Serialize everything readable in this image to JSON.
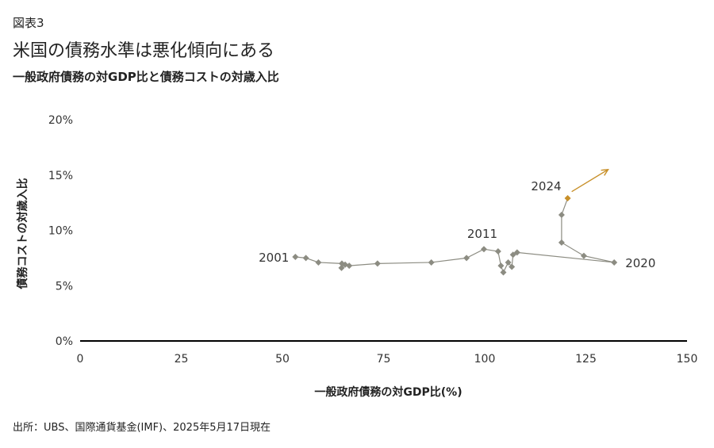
{
  "figure_label": "図表3",
  "headline": "米国の債務水準は悪化傾向にある",
  "subtitle": "一般政府債務の対GDP比と債務コストの対歳入比",
  "source": "出所：UBS、国際通貨基金(IMF)、2025年5月17日現在",
  "colors": {
    "series": "#8c8c82",
    "highlight": "#c8902a",
    "axis": "#000000"
  },
  "chart_data": {
    "type": "scatter",
    "xlabel": "一般政府債務の対GDP比(%)",
    "ylabel": "債務コストの対歳入比",
    "xlim": [
      0,
      150
    ],
    "ylim": [
      0,
      20
    ],
    "x_ticks": [
      0,
      25,
      50,
      75,
      100,
      125,
      150
    ],
    "y_ticks": [
      0,
      5,
      10,
      15,
      20
    ],
    "y_tick_labels": [
      "0%",
      "5%",
      "10%",
      "15%",
      "20%"
    ],
    "grid": false,
    "points": [
      {
        "x": 53.2,
        "y": 7.6,
        "label": "2001"
      },
      {
        "x": 55.8,
        "y": 7.5
      },
      {
        "x": 58.9,
        "y": 7.1
      },
      {
        "x": 64.7,
        "y": 7.0
      },
      {
        "x": 64.6,
        "y": 6.6
      },
      {
        "x": 65.5,
        "y": 6.9
      },
      {
        "x": 66.5,
        "y": 6.8
      },
      {
        "x": 73.5,
        "y": 7.0
      },
      {
        "x": 86.8,
        "y": 7.1
      },
      {
        "x": 95.5,
        "y": 7.5
      },
      {
        "x": 99.8,
        "y": 8.3,
        "label": "2011"
      },
      {
        "x": 103.3,
        "y": 8.1
      },
      {
        "x": 104.0,
        "y": 6.8
      },
      {
        "x": 104.6,
        "y": 6.2
      },
      {
        "x": 105.8,
        "y": 7.1
      },
      {
        "x": 106.7,
        "y": 6.7
      },
      {
        "x": 107.0,
        "y": 7.8
      },
      {
        "x": 108.0,
        "y": 8.0
      },
      {
        "x": 132.0,
        "y": 7.1,
        "label": "2020"
      },
      {
        "x": 124.5,
        "y": 7.7
      },
      {
        "x": 119.0,
        "y": 8.9
      },
      {
        "x": 119.0,
        "y": 11.4
      },
      {
        "x": 120.5,
        "y": 12.9,
        "label": "2024",
        "highlight": true
      }
    ],
    "arrow": {
      "from": [
        121.5,
        13.5
      ],
      "to": [
        130.5,
        15.5
      ]
    }
  }
}
